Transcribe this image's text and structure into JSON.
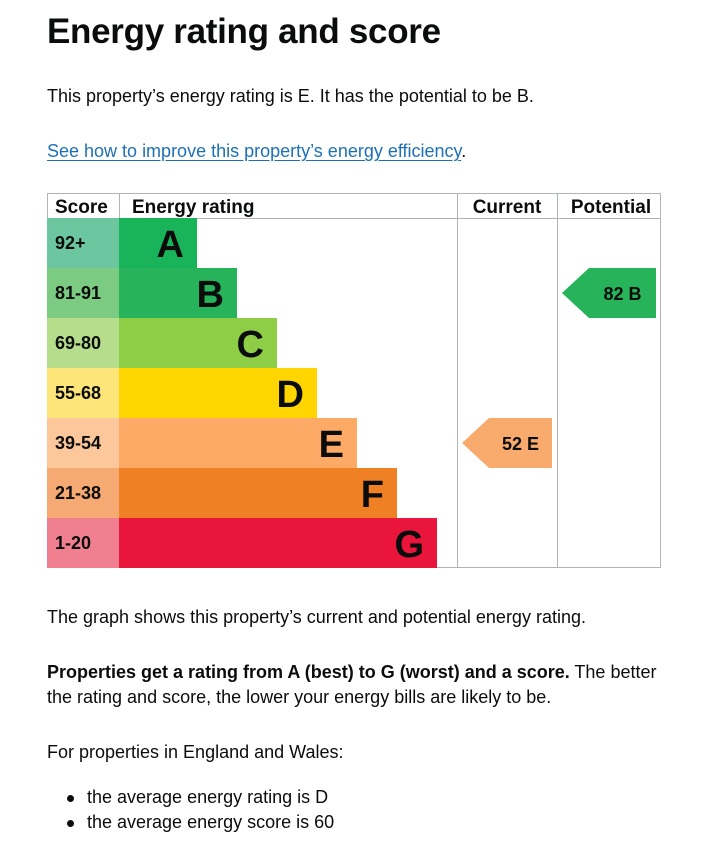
{
  "page": {
    "title": "Energy rating and score",
    "intro": "This property’s energy rating is E. It has the potential to be B.",
    "link_text": "See how to improve this property’s energy efficiency",
    "link_suffix": ".",
    "graph_caption": "The graph shows this property’s current and potential energy rating.",
    "ratings_bold": "Properties get a rating from A (best) to G (worst) and a score.",
    "ratings_rest": " The better the rating and score, the lower your energy bills are likely to be.",
    "england_wales": "For properties in England and Wales:",
    "bullets": [
      "the average energy rating is D",
      "the average energy score is 60"
    ]
  },
  "chart_data": {
    "type": "bar",
    "headers": {
      "score": "Score",
      "rating": "Energy rating",
      "current": "Current",
      "potential": "Potential"
    },
    "bands": [
      {
        "letter": "A",
        "range": "92+",
        "color": "#19b459",
        "score_color": "#6cc7a0"
      },
      {
        "letter": "B",
        "range": "81-91",
        "color": "#27b35a",
        "score_color": "#7ccb83"
      },
      {
        "letter": "C",
        "range": "69-80",
        "color": "#8dce46",
        "score_color": "#b5dd8c"
      },
      {
        "letter": "D",
        "range": "55-68",
        "color": "#ffd500",
        "score_color": "#fde57a"
      },
      {
        "letter": "E",
        "range": "39-54",
        "color": "#fcaa65",
        "score_color": "#fdc79c"
      },
      {
        "letter": "F",
        "range": "21-38",
        "color": "#ef8023",
        "score_color": "#f4aa72"
      },
      {
        "letter": "G",
        "range": "1-20",
        "color": "#e9153b",
        "score_color": "#f08090"
      }
    ],
    "current": {
      "score": 52,
      "letter": "E",
      "label": "52 E",
      "color": "#f8ab6d"
    },
    "potential": {
      "score": 82,
      "letter": "B",
      "label": "82 B",
      "color": "#27b35a"
    },
    "grid_color": "#b1b4b6"
  }
}
